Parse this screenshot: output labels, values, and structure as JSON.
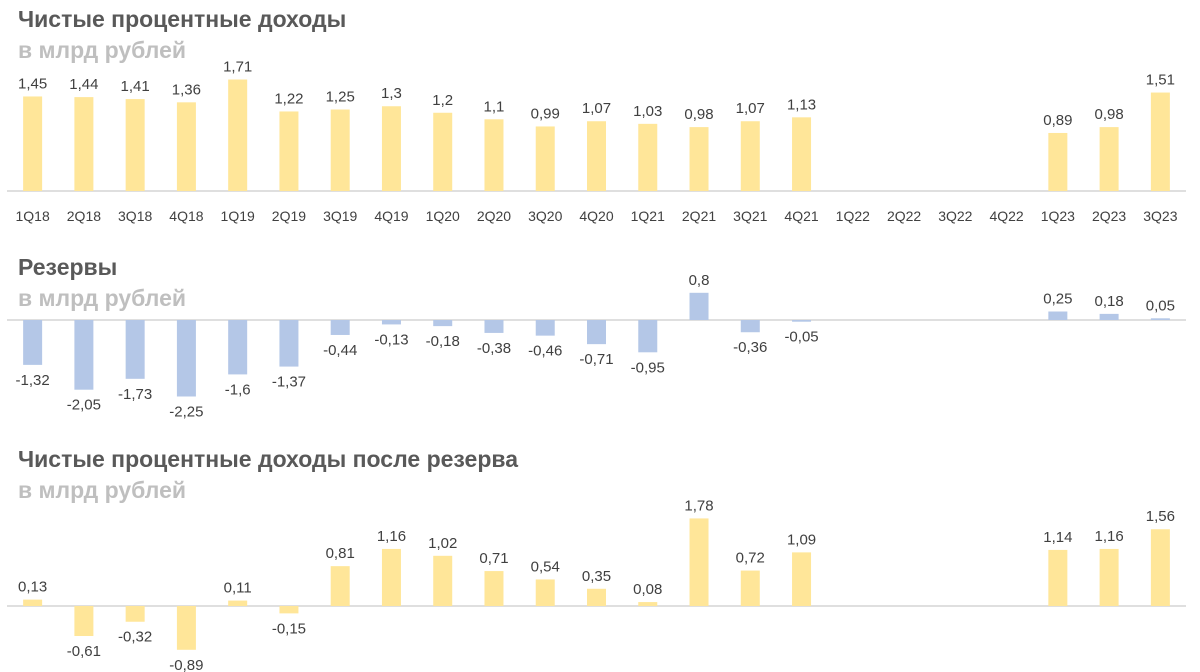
{
  "colors": {
    "income_bar": "#FFE699",
    "reserve_bar": "#B4C7E7",
    "axis": "#BFBFBF",
    "label": "#404040",
    "title": "#595959",
    "subtitle": "#BFBFBF"
  },
  "chart_data": [
    {
      "type": "bar",
      "title": "Чистые процентные доходы",
      "subtitle": "в млрд рублей",
      "categories": [
        "1Q18",
        "2Q18",
        "3Q18",
        "4Q18",
        "1Q19",
        "2Q19",
        "3Q19",
        "4Q19",
        "1Q20",
        "2Q20",
        "3Q20",
        "4Q20",
        "1Q21",
        "2Q21",
        "3Q21",
        "4Q21",
        "1Q22",
        "2Q22",
        "3Q22",
        "4Q22",
        "1Q23",
        "2Q23",
        "3Q23"
      ],
      "values": [
        1.45,
        1.44,
        1.41,
        1.36,
        1.71,
        1.22,
        1.25,
        1.3,
        1.2,
        1.1,
        0.99,
        1.07,
        1.03,
        0.98,
        1.07,
        1.13,
        null,
        null,
        null,
        null,
        0.89,
        0.98,
        1.51
      ],
      "value_labels": [
        "1,45",
        "1,44",
        "1,41",
        "1,36",
        "1,71",
        "1,22",
        "1,25",
        "1,3",
        "1,2",
        "1,1",
        "0,99",
        "1,07",
        "1,03",
        "0,98",
        "1,07",
        "1,13",
        "",
        "",
        "",
        "",
        "0,89",
        "0,98",
        "1,51"
      ],
      "show_category_labels": true
    },
    {
      "type": "bar",
      "title": "Резервы",
      "subtitle": "в млрд рублей",
      "categories": [
        "1Q18",
        "2Q18",
        "3Q18",
        "4Q18",
        "1Q19",
        "2Q19",
        "3Q19",
        "4Q19",
        "1Q20",
        "2Q20",
        "3Q20",
        "4Q20",
        "1Q21",
        "2Q21",
        "3Q21",
        "4Q21",
        "1Q22",
        "2Q22",
        "3Q22",
        "4Q22",
        "1Q23",
        "2Q23",
        "3Q23"
      ],
      "values": [
        -1.32,
        -2.05,
        -1.73,
        -2.25,
        -1.6,
        -1.37,
        -0.44,
        -0.13,
        -0.18,
        -0.38,
        -0.46,
        -0.71,
        -0.95,
        0.8,
        -0.36,
        -0.05,
        null,
        null,
        null,
        null,
        0.25,
        0.18,
        0.05
      ],
      "value_labels": [
        "-1,32",
        "-2,05",
        "-1,73",
        "-2,25",
        "-1,6",
        "-1,37",
        "-0,44",
        "-0,13",
        "-0,18",
        "-0,38",
        "-0,46",
        "-0,71",
        "-0,95",
        "0,8",
        "-0,36",
        "-0,05",
        "",
        "",
        "",
        "",
        "0,25",
        "0,18",
        "0,05"
      ],
      "show_category_labels": false
    },
    {
      "type": "bar",
      "title": "Чистые процентные доходы после резерва",
      "subtitle": "в млрд рублей",
      "categories": [
        "1Q18",
        "2Q18",
        "3Q18",
        "4Q18",
        "1Q19",
        "2Q19",
        "3Q19",
        "4Q19",
        "1Q20",
        "2Q20",
        "3Q20",
        "4Q20",
        "1Q21",
        "2Q21",
        "3Q21",
        "4Q21",
        "1Q22",
        "2Q22",
        "3Q22",
        "4Q22",
        "1Q23",
        "2Q23",
        "3Q23"
      ],
      "values": [
        0.13,
        -0.61,
        -0.32,
        -0.89,
        0.11,
        -0.15,
        0.81,
        1.16,
        1.02,
        0.71,
        0.54,
        0.35,
        0.08,
        1.78,
        0.72,
        1.09,
        null,
        null,
        null,
        null,
        1.14,
        1.16,
        1.56
      ],
      "value_labels": [
        "0,13",
        "-0,61",
        "-0,32",
        "-0,89",
        "0,11",
        "-0,15",
        "0,81",
        "1,16",
        "1,02",
        "0,71",
        "0,54",
        "0,35",
        "0,08",
        "1,78",
        "0,72",
        "1,09",
        "",
        "",
        "",
        "",
        "1,14",
        "1,16",
        "1,56"
      ],
      "show_category_labels": false
    }
  ]
}
